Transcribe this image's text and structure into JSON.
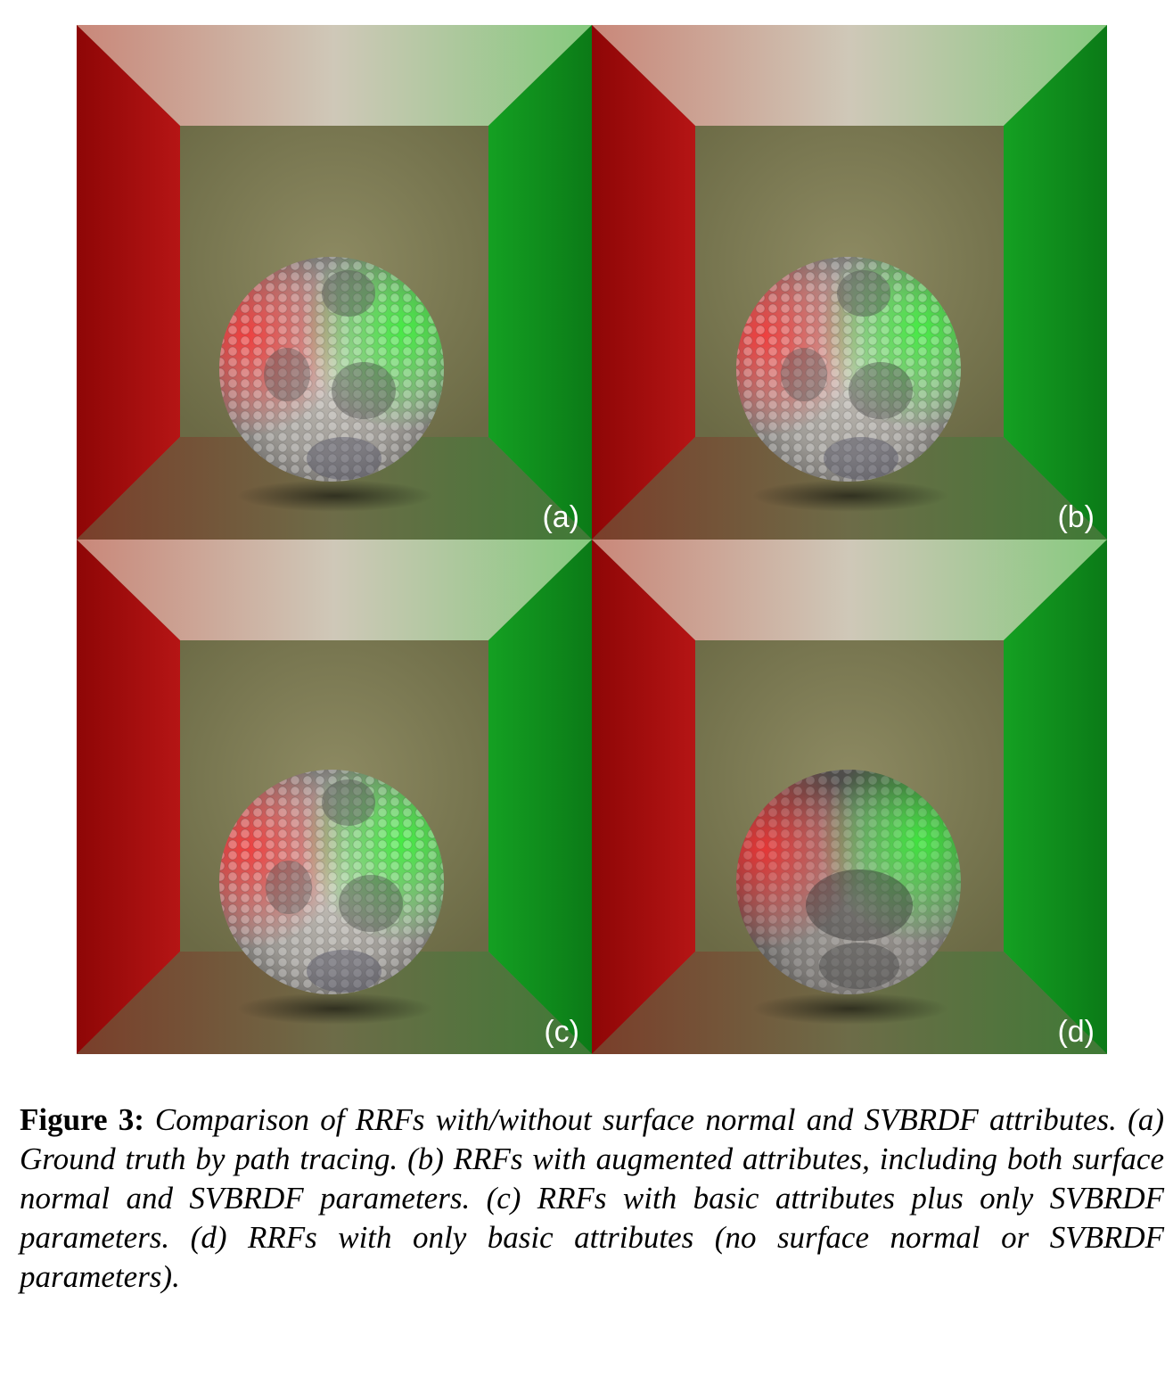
{
  "figure": {
    "panels": [
      {
        "label": "(a)",
        "name": "ground-truth"
      },
      {
        "label": "(b)",
        "name": "augmented-attributes"
      },
      {
        "label": "(c)",
        "name": "basic-plus-svbrdf"
      },
      {
        "label": "(d)",
        "name": "basic-only"
      }
    ],
    "colors": {
      "red_wall": "#a50d0d",
      "green_wall": "#0f8a1f",
      "ceiling_red": "#d9897a",
      "ceiling_green": "#8fce88",
      "back_wall": "#7d7d52",
      "floor": "#6b6b42"
    }
  },
  "caption": {
    "label": "Figure 3:",
    "text": "Comparison of RRFs with/without surface normal and SVBRDF attributes. (a) Ground truth by path tracing. (b) RRFs with augmented attributes, including both surface normal and SVBRDF parameters. (c) RRFs with basic attributes plus only SVBRDF parameters. (d) RRFs with only basic attributes (no surface normal or SVBRDF parameters)."
  }
}
